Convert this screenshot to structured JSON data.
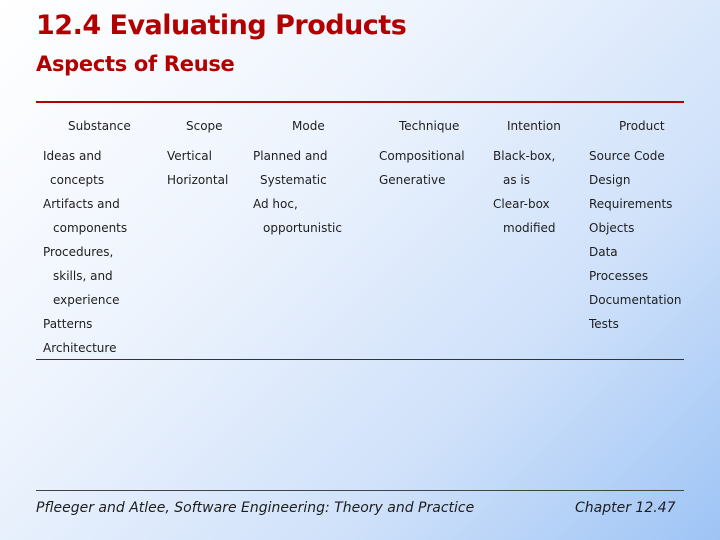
{
  "slide": {
    "title": "12.4 Evaluating Products",
    "subtitle": "Aspects of Reuse"
  },
  "table": {
    "headers": {
      "substance": "Substance",
      "scope": "Scope",
      "mode": "Mode",
      "technique": "Technique",
      "intention": "Intention",
      "product": "Product"
    },
    "substance": [
      "Ideas and",
      "concepts",
      "Artifacts and",
      "components",
      "Procedures,",
      "skills, and",
      "experience",
      "Patterns",
      "Architecture"
    ],
    "scope": [
      "Vertical",
      "Horizontal"
    ],
    "mode": [
      "Planned and",
      "Systematic",
      "Ad hoc,",
      "opportunistic"
    ],
    "technique": [
      "Compositional",
      "Generative"
    ],
    "intention": [
      "Black-box,",
      "as is",
      "Clear-box",
      "modified"
    ],
    "product": [
      "Source Code",
      "Design",
      "Requirements",
      "Objects",
      "Data",
      "Processes",
      "Documentation",
      "Tests"
    ]
  },
  "footer": {
    "citation": "Pfleeger and Atlee, Software Engineering: Theory and Practice",
    "chapter": "Chapter 12.47"
  },
  "colors": {
    "title": "#b20000",
    "background_start": "#ffffff",
    "background_end": "#9ec4f5"
  }
}
